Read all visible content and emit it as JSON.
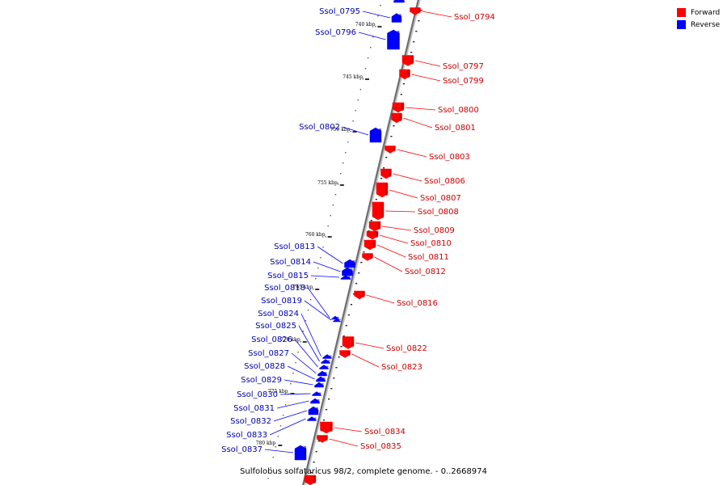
{
  "title": "Sulfolobus solfataricus 98/2, complete genome. - 0..2668974",
  "legend": {
    "forward_label": "Forward",
    "reverse_label": "Reverse",
    "forward_color": "#ff0000",
    "reverse_color": "#0000ff"
  },
  "ticks": [
    "740 kbp",
    "745 kbp",
    "750 kbp",
    "755 kbp",
    "760 kbp",
    "765 kbp",
    "770 kbp",
    "775 kbp",
    "780 kbp"
  ],
  "forward_genes": [
    "Ssol_0794",
    "Ssol_0797",
    "Ssol_0799",
    "Ssol_0800",
    "Ssol_0801",
    "Ssol_0803",
    "Ssol_0806",
    "Ssol_0807",
    "Ssol_0808",
    "Ssol_0809",
    "Ssol_0810",
    "Ssol_0811",
    "Ssol_0812",
    "Ssol_0816",
    "Ssol_0822",
    "Ssol_0823",
    "Ssol_0834",
    "Ssol_0835"
  ],
  "reverse_genes": [
    "Ssol_0795",
    "Ssol_0796",
    "Ssol_0802",
    "Ssol_0813",
    "Ssol_0814",
    "Ssol_0815",
    "Ssol_0818",
    "Ssol_0819",
    "Ssol_0824",
    "Ssol_0825",
    "Ssol_0826",
    "Ssol_0827",
    "Ssol_0828",
    "Ssol_0829",
    "Ssol_0830",
    "Ssol_0831",
    "Ssol_0832",
    "Ssol_0833",
    "Ssol_0837"
  ]
}
